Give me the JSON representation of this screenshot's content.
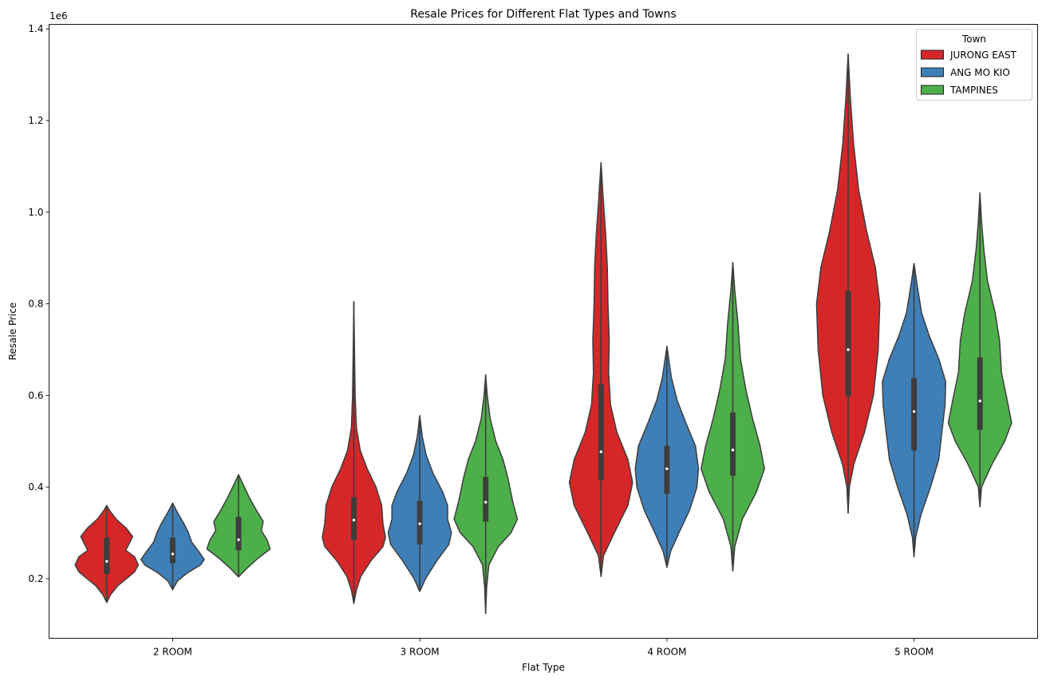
{
  "chart_data": {
    "type": "violin",
    "title": "Resale Prices for Different Flat Types and Towns",
    "xlabel": "Flat Type",
    "ylabel": "Resale Price",
    "y_scale_label": "1e6",
    "ylim": [
      70000,
      1410000
    ],
    "y_ticks": [
      {
        "value": 200000,
        "label": "0.2"
      },
      {
        "value": 400000,
        "label": "0.4"
      },
      {
        "value": 600000,
        "label": "0.6"
      },
      {
        "value": 800000,
        "label": "0.8"
      },
      {
        "value": 1000000,
        "label": "1.0"
      },
      {
        "value": 1200000,
        "label": "1.2"
      },
      {
        "value": 1400000,
        "label": "1.4"
      }
    ],
    "grid": false,
    "categories": [
      "2 ROOM",
      "3 ROOM",
      "4 ROOM",
      "5 ROOM"
    ],
    "legend": {
      "title": "Town",
      "position": "top-right"
    },
    "series": [
      {
        "name": "JURONG EAST",
        "color": "#d62728",
        "violins": [
          {
            "min": 148000,
            "q1": 210000,
            "median": 238000,
            "q3": 290000,
            "max": 360000,
            "profile": [
              [
                148000,
                0
              ],
              [
                165000,
                0.12
              ],
              [
                185000,
                0.35
              ],
              [
                200000,
                0.62
              ],
              [
                215000,
                0.88
              ],
              [
                230000,
                1.0
              ],
              [
                248000,
                0.88
              ],
              [
                262000,
                0.6
              ],
              [
                278000,
                0.72
              ],
              [
                292000,
                0.82
              ],
              [
                310000,
                0.62
              ],
              [
                330000,
                0.3
              ],
              [
                348000,
                0.1
              ],
              [
                360000,
                0
              ]
            ]
          },
          {
            "min": 146000,
            "q1": 285000,
            "median": 328000,
            "q3": 378000,
            "max": 805000,
            "profile": [
              [
                146000,
                0
              ],
              [
                175000,
                0.08
              ],
              [
                205000,
                0.22
              ],
              [
                240000,
                0.55
              ],
              [
                270000,
                0.92
              ],
              [
                290000,
                1.0
              ],
              [
                320000,
                0.92
              ],
              [
                360000,
                0.88
              ],
              [
                400000,
                0.7
              ],
              [
                440000,
                0.42
              ],
              [
                480000,
                0.2
              ],
              [
                530000,
                0.08
              ],
              [
                600000,
                0.04
              ],
              [
                700000,
                0.02
              ],
              [
                805000,
                0
              ]
            ]
          },
          {
            "min": 205000,
            "q1": 415000,
            "median": 477000,
            "q3": 625000,
            "max": 1108000,
            "profile": [
              [
                205000,
                0
              ],
              [
                250000,
                0.08
              ],
              [
                300000,
                0.42
              ],
              [
                360000,
                0.85
              ],
              [
                410000,
                1.0
              ],
              [
                460000,
                0.85
              ],
              [
                520000,
                0.5
              ],
              [
                580000,
                0.3
              ],
              [
                650000,
                0.24
              ],
              [
                720000,
                0.26
              ],
              [
                800000,
                0.22
              ],
              [
                880000,
                0.2
              ],
              [
                950000,
                0.15
              ],
              [
                1020000,
                0.08
              ],
              [
                1108000,
                0
              ]
            ]
          },
          {
            "min": 343000,
            "q1": 598000,
            "median": 700000,
            "q3": 828000,
            "max": 1345000,
            "profile": [
              [
                343000,
                0
              ],
              [
                400000,
                0.04
              ],
              [
                450000,
                0.18
              ],
              [
                520000,
                0.52
              ],
              [
                600000,
                0.8
              ],
              [
                700000,
                0.95
              ],
              [
                800000,
                1.0
              ],
              [
                880000,
                0.86
              ],
              [
                960000,
                0.58
              ],
              [
                1050000,
                0.33
              ],
              [
                1150000,
                0.17
              ],
              [
                1250000,
                0.07
              ],
              [
                1345000,
                0
              ]
            ]
          }
        ]
      },
      {
        "name": "ANG MO KIO",
        "color": "#3f7fb8",
        "violins": [
          {
            "min": 176000,
            "q1": 234000,
            "median": 254000,
            "q3": 290000,
            "max": 365000,
            "profile": [
              [
                176000,
                0
              ],
              [
                195000,
                0.15
              ],
              [
                212000,
                0.45
              ],
              [
                230000,
                0.88
              ],
              [
                242000,
                1.0
              ],
              [
                258000,
                0.84
              ],
              [
                280000,
                0.6
              ],
              [
                300000,
                0.5
              ],
              [
                320000,
                0.36
              ],
              [
                345000,
                0.15
              ],
              [
                365000,
                0
              ]
            ]
          },
          {
            "min": 172000,
            "q1": 275000,
            "median": 320000,
            "q3": 370000,
            "max": 556000,
            "profile": [
              [
                172000,
                0
              ],
              [
                200000,
                0.18
              ],
              [
                240000,
                0.55
              ],
              [
                275000,
                0.92
              ],
              [
                300000,
                1.0
              ],
              [
                330000,
                0.88
              ],
              [
                360000,
                0.88
              ],
              [
                390000,
                0.72
              ],
              [
                430000,
                0.42
              ],
              [
                470000,
                0.2
              ],
              [
                510000,
                0.08
              ],
              [
                556000,
                0
              ]
            ]
          },
          {
            "min": 225000,
            "q1": 385000,
            "median": 440000,
            "q3": 490000,
            "max": 707000,
            "profile": [
              [
                225000,
                0
              ],
              [
                260000,
                0.12
              ],
              [
                300000,
                0.38
              ],
              [
                350000,
                0.72
              ],
              [
                400000,
                0.95
              ],
              [
                440000,
                1.0
              ],
              [
                490000,
                0.9
              ],
              [
                540000,
                0.6
              ],
              [
                590000,
                0.32
              ],
              [
                640000,
                0.14
              ],
              [
                707000,
                0
              ]
            ]
          },
          {
            "min": 248000,
            "q1": 480000,
            "median": 565000,
            "q3": 638000,
            "max": 888000,
            "profile": [
              [
                248000,
                0
              ],
              [
                290000,
                0.05
              ],
              [
                340000,
                0.22
              ],
              [
                400000,
                0.52
              ],
              [
                460000,
                0.78
              ],
              [
                520000,
                0.88
              ],
              [
                580000,
                0.98
              ],
              [
                630000,
                1.0
              ],
              [
                680000,
                0.78
              ],
              [
                730000,
                0.48
              ],
              [
                780000,
                0.24
              ],
              [
                840000,
                0.1
              ],
              [
                888000,
                0
              ]
            ]
          }
        ]
      },
      {
        "name": "TAMPINES",
        "color": "#4daf4a",
        "violins": [
          {
            "min": 204000,
            "q1": 262000,
            "median": 285000,
            "q3": 335000,
            "max": 427000,
            "profile": [
              [
                204000,
                0
              ],
              [
                222000,
                0.25
              ],
              [
                245000,
                0.62
              ],
              [
                265000,
                1.0
              ],
              [
                285000,
                0.9
              ],
              [
                305000,
                0.72
              ],
              [
                325000,
                0.78
              ],
              [
                345000,
                0.6
              ],
              [
                375000,
                0.36
              ],
              [
                405000,
                0.15
              ],
              [
                427000,
                0
              ]
            ]
          },
          {
            "min": 124000,
            "q1": 325000,
            "median": 367000,
            "q3": 422000,
            "max": 645000,
            "profile": [
              [
                124000,
                0
              ],
              [
                180000,
                0.03
              ],
              [
                230000,
                0.1
              ],
              [
                270000,
                0.4
              ],
              [
                300000,
                0.8
              ],
              [
                330000,
                1.0
              ],
              [
                370000,
                0.85
              ],
              [
                420000,
                0.7
              ],
              [
                460000,
                0.55
              ],
              [
                500000,
                0.32
              ],
              [
                550000,
                0.14
              ],
              [
                600000,
                0.05
              ],
              [
                645000,
                0
              ]
            ]
          },
          {
            "min": 217000,
            "q1": 425000,
            "median": 481000,
            "q3": 563000,
            "max": 890000,
            "profile": [
              [
                217000,
                0
              ],
              [
                270000,
                0.06
              ],
              [
                330000,
                0.3
              ],
              [
                390000,
                0.75
              ],
              [
                440000,
                1.0
              ],
              [
                490000,
                0.86
              ],
              [
                550000,
                0.62
              ],
              [
                610000,
                0.42
              ],
              [
                680000,
                0.24
              ],
              [
                760000,
                0.16
              ],
              [
                830000,
                0.06
              ],
              [
                890000,
                0
              ]
            ]
          },
          {
            "min": 357000,
            "q1": 525000,
            "median": 588000,
            "q3": 683000,
            "max": 1042000,
            "profile": [
              [
                357000,
                0
              ],
              [
                400000,
                0.05
              ],
              [
                450000,
                0.38
              ],
              [
                500000,
                0.78
              ],
              [
                540000,
                1.0
              ],
              [
                590000,
                0.86
              ],
              [
                650000,
                0.68
              ],
              [
                720000,
                0.62
              ],
              [
                780000,
                0.48
              ],
              [
                850000,
                0.24
              ],
              [
                920000,
                0.12
              ],
              [
                980000,
                0.05
              ],
              [
                1042000,
                0
              ]
            ]
          }
        ]
      }
    ]
  }
}
